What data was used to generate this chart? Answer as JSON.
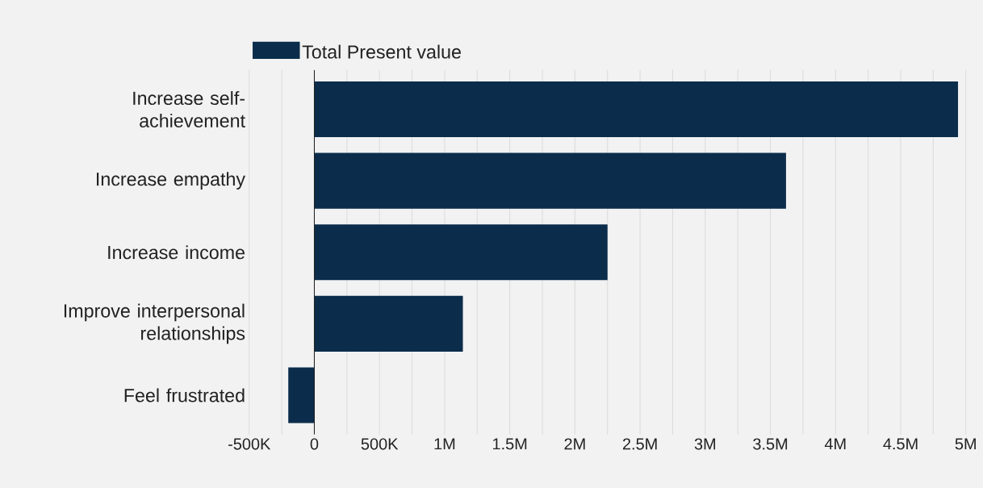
{
  "chart_data": {
    "type": "bar",
    "orientation": "horizontal",
    "categories": [
      "Increase self-achievement",
      "Increase empathy",
      "Increase income",
      "Improve interpersonal relationships",
      "Feel frustrated"
    ],
    "series": [
      {
        "name": "Total Present value",
        "color": "#0b2d4b",
        "values": [
          4940000,
          3620000,
          2250000,
          1140000,
          -200000
        ]
      }
    ],
    "xlim": [
      -500000,
      5000000
    ],
    "xticks": [
      {
        "value": -500000,
        "label": "-500K"
      },
      {
        "value": -250000,
        "label": null
      },
      {
        "value": 0,
        "label": "0"
      },
      {
        "value": 250000,
        "label": null
      },
      {
        "value": 500000,
        "label": "500K"
      },
      {
        "value": 750000,
        "label": null
      },
      {
        "value": 1000000,
        "label": "1M"
      },
      {
        "value": 1250000,
        "label": null
      },
      {
        "value": 1500000,
        "label": "1.5M"
      },
      {
        "value": 1750000,
        "label": null
      },
      {
        "value": 2000000,
        "label": "2M"
      },
      {
        "value": 2250000,
        "label": null
      },
      {
        "value": 2500000,
        "label": "2.5M"
      },
      {
        "value": 2750000,
        "label": null
      },
      {
        "value": 3000000,
        "label": "3M"
      },
      {
        "value": 3250000,
        "label": null
      },
      {
        "value": 3500000,
        "label": "3.5M"
      },
      {
        "value": 3750000,
        "label": null
      },
      {
        "value": 4000000,
        "label": "4M"
      },
      {
        "value": 4250000,
        "label": null
      },
      {
        "value": 4500000,
        "label": "4.5M"
      },
      {
        "value": 4750000,
        "label": null
      },
      {
        "value": 5000000,
        "label": "5M"
      }
    ],
    "grid": "x",
    "legend": "top left"
  }
}
